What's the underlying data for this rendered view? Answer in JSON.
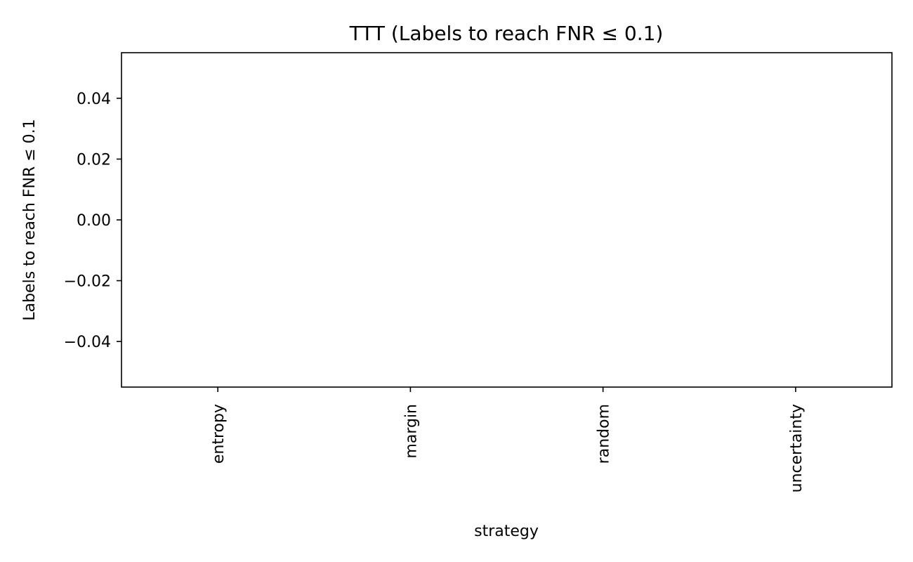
{
  "chart_data": {
    "type": "bar",
    "title": "TTT (Labels to reach FNR ≤ 0.1)",
    "xlabel": "strategy",
    "ylabel": "Labels to reach FNR ≤ 0.1",
    "categories": [
      "entropy",
      "margin",
      "random",
      "uncertainty"
    ],
    "values": [
      null,
      null,
      null,
      null
    ],
    "ylim": [
      -0.055,
      0.055
    ],
    "yticks": [
      -0.04,
      -0.02,
      0.0,
      0.02,
      0.04
    ],
    "ytick_labels": [
      "−0.04",
      "−0.02",
      "0.00",
      "0.02",
      "0.04"
    ],
    "xtick_rotation": "vertical",
    "grid": false,
    "legend": "none"
  }
}
